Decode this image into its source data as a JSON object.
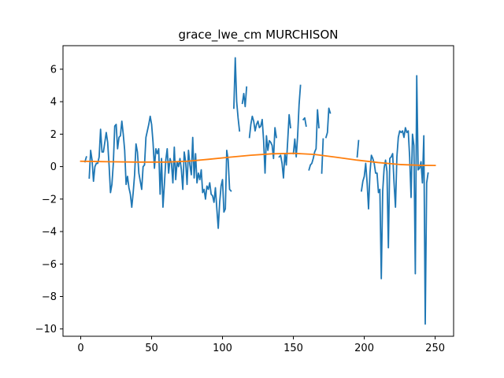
{
  "chart_data": {
    "type": "line",
    "title": "grace_lwe_cm MURCHISON",
    "xlabel": "",
    "ylabel": "",
    "xlim": [
      -12.5,
      263
    ],
    "ylim": [
      -10.45,
      7.45
    ],
    "grid": false,
    "legend": "none",
    "xticks": [
      0,
      50,
      100,
      150,
      200,
      250
    ],
    "yticks": [
      -10,
      -8,
      -6,
      -4,
      -2,
      0,
      2,
      4,
      6
    ],
    "series": [
      {
        "color": "#1f77b4",
        "points": [
          [
            3,
            0.3
          ],
          [
            4,
            0.6
          ],
          [
            5,
            null
          ],
          [
            6,
            -0.7
          ],
          [
            7,
            1.0
          ],
          [
            8,
            0.4
          ],
          [
            9,
            -0.9
          ],
          [
            10,
            0.0
          ],
          [
            11,
            0.2
          ],
          [
            12,
            0.2
          ],
          [
            13,
            0.6
          ],
          [
            14,
            2.3
          ],
          [
            15,
            0.9
          ],
          [
            16,
            0.9
          ],
          [
            17,
            1.5
          ],
          [
            18,
            2.1
          ],
          [
            19,
            1.5
          ],
          [
            20,
            0.1
          ],
          [
            21,
            -1.6
          ],
          [
            22,
            -1.1
          ],
          [
            23,
            0.2
          ],
          [
            24,
            2.5
          ],
          [
            25,
            2.6
          ],
          [
            26,
            1.1
          ],
          [
            27,
            1.8
          ],
          [
            28,
            1.9
          ],
          [
            29,
            2.8
          ],
          [
            30,
            2.0
          ],
          [
            31,
            1.0
          ],
          [
            32,
            -1.1
          ],
          [
            33,
            -0.6
          ],
          [
            34,
            -1.3
          ],
          [
            35,
            -1.7
          ],
          [
            36,
            -2.5
          ],
          [
            37,
            -1.6
          ],
          [
            38,
            -0.5
          ],
          [
            39,
            1.4
          ],
          [
            40,
            0.9
          ],
          [
            41,
            -0.4
          ],
          [
            42,
            -0.9
          ],
          [
            43,
            -1.4
          ],
          [
            44,
            0.0
          ],
          [
            45,
            0.1
          ],
          [
            46,
            1.8
          ],
          [
            47,
            2.2
          ],
          [
            48,
            2.6
          ],
          [
            49,
            3.1
          ],
          [
            50,
            2.6
          ],
          [
            51,
            1.5
          ],
          [
            52,
            -0.1
          ],
          [
            53,
            1.1
          ],
          [
            54,
            0.8
          ],
          [
            55,
            1.1
          ],
          [
            56,
            -1.7
          ],
          [
            57,
            0.5
          ],
          [
            58,
            -2.5
          ],
          [
            59,
            -1.1
          ],
          [
            60,
            0.4
          ],
          [
            61,
            1.1
          ],
          [
            62,
            -0.4
          ],
          [
            63,
            0.5
          ],
          [
            64,
            0.2
          ],
          [
            65,
            -1.0
          ],
          [
            66,
            1.2
          ],
          [
            67,
            -0.8
          ],
          [
            68,
            0.3
          ],
          [
            69,
            0.0
          ],
          [
            70,
            0.5
          ],
          [
            71,
            -0.2
          ],
          [
            72,
            -1.4
          ],
          [
            73,
            0.9
          ],
          [
            74,
            0.3
          ],
          [
            75,
            -1.1
          ],
          [
            76,
            1.0
          ],
          [
            77,
            0.1
          ],
          [
            78,
            -0.5
          ],
          [
            79,
            1.8
          ],
          [
            80,
            -0.7
          ],
          [
            81,
            0.8
          ],
          [
            82,
            -1.0
          ],
          [
            83,
            -0.4
          ],
          [
            84,
            -0.8
          ],
          [
            85,
            -0.2
          ],
          [
            86,
            -1.6
          ],
          [
            87,
            -1.4
          ],
          [
            88,
            -2.0
          ],
          [
            89,
            -1.2
          ],
          [
            90,
            -1.4
          ],
          [
            91,
            -1.0
          ],
          [
            92,
            -1.7
          ],
          [
            93,
            -1.8
          ],
          [
            94,
            -2.2
          ],
          [
            95,
            -1.3
          ],
          [
            96,
            -2.6
          ],
          [
            97,
            -3.8
          ],
          [
            98,
            -2.2
          ],
          [
            99,
            -1.2
          ],
          [
            100,
            -0.8
          ],
          [
            101,
            -2.8
          ],
          [
            102,
            -2.6
          ],
          [
            103,
            1.0
          ],
          [
            104,
            0.4
          ],
          [
            105,
            -1.4
          ],
          [
            106,
            -1.5
          ],
          [
            107,
            null
          ],
          [
            108,
            3.6
          ],
          [
            109,
            6.7
          ],
          [
            110,
            4.0
          ],
          [
            111,
            3.0
          ],
          [
            112,
            2.2
          ],
          [
            113,
            null
          ],
          [
            114,
            3.9
          ],
          [
            115,
            4.5
          ],
          [
            116,
            3.7
          ],
          [
            117,
            4.9
          ],
          [
            118,
            null
          ],
          [
            119,
            1.8
          ],
          [
            120,
            2.6
          ],
          [
            121,
            3.1
          ],
          [
            122,
            2.8
          ],
          [
            123,
            2.2
          ],
          [
            124,
            2.6
          ],
          [
            125,
            2.8
          ],
          [
            126,
            2.4
          ],
          [
            127,
            2.5
          ],
          [
            128,
            2.9
          ],
          [
            129,
            1.6
          ],
          [
            130,
            -0.4
          ],
          [
            131,
            1.9
          ],
          [
            132,
            1.0
          ],
          [
            133,
            1.6
          ],
          [
            134,
            1.5
          ],
          [
            135,
            1.3
          ],
          [
            136,
            0.5
          ],
          [
            137,
            2.4
          ],
          [
            138,
            1.8
          ],
          [
            139,
            null
          ],
          [
            140,
            0.6
          ],
          [
            141,
            0.7
          ],
          [
            142,
            0.2
          ],
          [
            143,
            -0.7
          ],
          [
            144,
            0.8
          ],
          [
            145,
            0.1
          ],
          [
            146,
            1.6
          ],
          [
            147,
            3.2
          ],
          [
            148,
            2.4
          ],
          [
            149,
            null
          ],
          [
            150,
            0.8
          ],
          [
            151,
            1.7
          ],
          [
            152,
            0.6
          ],
          [
            153,
            1.9
          ],
          [
            154,
            3.8
          ],
          [
            155,
            5.0
          ],
          [
            156,
            null
          ],
          [
            157,
            2.9
          ],
          [
            158,
            3.0
          ],
          [
            159,
            2.5
          ],
          [
            160,
            null
          ],
          [
            161,
            -0.2
          ],
          [
            162,
            0.1
          ],
          [
            163,
            0.2
          ],
          [
            164,
            0.5
          ],
          [
            165,
            0.9
          ],
          [
            166,
            1.1
          ],
          [
            167,
            3.5
          ],
          [
            168,
            2.4
          ],
          [
            169,
            null
          ],
          [
            170,
            -0.4
          ],
          [
            171,
            1.7
          ],
          [
            172,
            null
          ],
          [
            173,
            1.8
          ],
          [
            174,
            2.1
          ],
          [
            175,
            3.6
          ],
          [
            176,
            3.3
          ],
          [
            177,
            null
          ],
          [
            195,
            0.6
          ],
          [
            196,
            1.6
          ],
          [
            197,
            null
          ],
          [
            198,
            -1.5
          ],
          [
            199,
            -0.9
          ],
          [
            200,
            -0.6
          ],
          [
            201,
            0.2
          ],
          [
            202,
            -1.0
          ],
          [
            203,
            -2.6
          ],
          [
            204,
            -0.4
          ],
          [
            205,
            0.7
          ],
          [
            206,
            0.5
          ],
          [
            207,
            0.2
          ],
          [
            208,
            -0.4
          ],
          [
            209,
            -0.4
          ],
          [
            210,
            -1.6
          ],
          [
            211,
            -1.4
          ],
          [
            212,
            -6.9
          ],
          [
            213,
            -1.5
          ],
          [
            214,
            -0.1
          ],
          [
            215,
            0.4
          ],
          [
            216,
            -0.3
          ],
          [
            217,
            -5.0
          ],
          [
            218,
            0.5
          ],
          [
            219,
            0.6
          ],
          [
            220,
            0.8
          ],
          [
            221,
            -1.0
          ],
          [
            222,
            -2.5
          ],
          [
            223,
            0.6
          ],
          [
            224,
            1.8
          ],
          [
            225,
            2.2
          ],
          [
            226,
            2.1
          ],
          [
            227,
            2.2
          ],
          [
            228,
            1.8
          ],
          [
            229,
            2.4
          ],
          [
            230,
            2.1
          ],
          [
            231,
            2.2
          ],
          [
            232,
            0.6
          ],
          [
            233,
            -1.9
          ],
          [
            234,
            2.0
          ],
          [
            235,
            1.3
          ],
          [
            236,
            -6.6
          ],
          [
            237,
            5.6
          ],
          [
            238,
            -0.2
          ],
          [
            239,
            -0.1
          ],
          [
            240,
            0.3
          ],
          [
            241,
            -1.0
          ],
          [
            242,
            1.9
          ],
          [
            243,
            -9.7
          ],
          [
            244,
            -1.0
          ],
          [
            245,
            -0.4
          ]
        ]
      },
      {
        "color": "#ff7f0e",
        "points": [
          [
            0,
            0.33
          ],
          [
            20,
            0.3
          ],
          [
            40,
            0.28
          ],
          [
            60,
            0.28
          ],
          [
            75,
            0.33
          ],
          [
            90,
            0.45
          ],
          [
            105,
            0.58
          ],
          [
            120,
            0.7
          ],
          [
            135,
            0.79
          ],
          [
            150,
            0.82
          ],
          [
            165,
            0.75
          ],
          [
            180,
            0.58
          ],
          [
            195,
            0.4
          ],
          [
            210,
            0.25
          ],
          [
            225,
            0.13
          ],
          [
            240,
            0.08
          ],
          [
            250,
            0.07
          ]
        ]
      }
    ]
  }
}
